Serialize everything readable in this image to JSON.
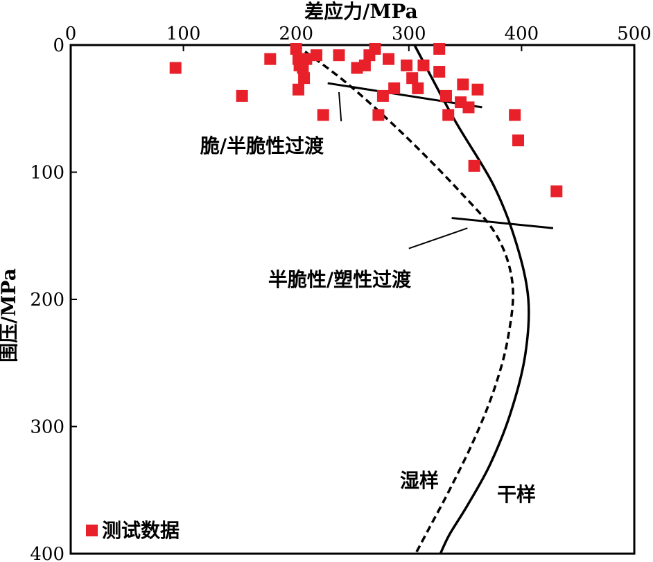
{
  "chart_data": {
    "type": "scatter",
    "xlabel": "差应力/MPa",
    "ylabel": "围压/MPa",
    "xlim": [
      0,
      500
    ],
    "ylim": [
      0,
      400
    ],
    "y_inverted": true,
    "x_axis_position": "top",
    "xticks": [
      0,
      100,
      200,
      300,
      400,
      500
    ],
    "yticks": [
      0,
      100,
      200,
      300,
      400
    ],
    "xtick_labels": [
      "0",
      "100",
      "200",
      "300",
      "400",
      "500"
    ],
    "ytick_labels": [
      "0",
      "100",
      "200",
      "300",
      "400"
    ],
    "grid": false,
    "legend": {
      "position": "bottom-left",
      "entries": [
        "测试数据"
      ]
    },
    "series": [
      {
        "name": "测试数据",
        "kind": "scatter",
        "color": "#e8202a",
        "marker": "square",
        "points": [
          [
            200,
            3
          ],
          [
            270,
            3
          ],
          [
            327,
            3
          ],
          [
            218,
            8
          ],
          [
            238,
            8
          ],
          [
            265,
            8
          ],
          [
            93,
            18
          ],
          [
            177,
            11
          ],
          [
            202,
            11
          ],
          [
            209,
            11
          ],
          [
            203,
            16
          ],
          [
            206,
            18
          ],
          [
            254,
            18
          ],
          [
            261,
            16
          ],
          [
            282,
            11
          ],
          [
            298,
            16
          ],
          [
            313,
            16
          ],
          [
            207,
            26
          ],
          [
            303,
            26
          ],
          [
            327,
            21
          ],
          [
            202,
            35
          ],
          [
            287,
            34
          ],
          [
            308,
            34
          ],
          [
            348,
            31
          ],
          [
            361,
            35
          ],
          [
            152,
            40
          ],
          [
            277,
            40
          ],
          [
            333,
            40
          ],
          [
            346,
            45
          ],
          [
            353,
            49
          ],
          [
            224,
            55
          ],
          [
            273,
            55
          ],
          [
            335,
            55
          ],
          [
            394,
            55
          ],
          [
            397,
            75
          ],
          [
            358,
            95
          ],
          [
            431,
            115
          ]
        ]
      },
      {
        "name": "干样",
        "kind": "line",
        "style": "solid",
        "points": [
          [
            305,
            0
          ],
          [
            340,
            58
          ],
          [
            375,
            110
          ],
          [
            395,
            155
          ],
          [
            406,
            200
          ],
          [
            403,
            245
          ],
          [
            390,
            290
          ],
          [
            372,
            330
          ],
          [
            352,
            362
          ],
          [
            336,
            385
          ],
          [
            328,
            400
          ]
        ]
      },
      {
        "name": "湿样",
        "kind": "line",
        "style": "dashed",
        "points": [
          [
            200,
            0
          ],
          [
            245,
            30
          ],
          [
            295,
            70
          ],
          [
            345,
            115
          ],
          [
            378,
            150
          ],
          [
            392,
            188
          ],
          [
            388,
            230
          ],
          [
            376,
            270
          ],
          [
            358,
            310
          ],
          [
            336,
            350
          ],
          [
            318,
            380
          ],
          [
            306,
            400
          ]
        ]
      }
    ],
    "boundary_lines": [
      {
        "name": "脆/半脆性过渡",
        "points": [
          [
            228,
            30
          ],
          [
            365,
            49
          ]
        ]
      },
      {
        "name": "半脆性/塑性过渡",
        "points": [
          [
            338,
            136
          ],
          [
            428,
            144
          ]
        ]
      }
    ],
    "annotations": [
      {
        "text": "脆/半脆性过渡",
        "leader_from": [
          240,
          60
        ],
        "leader_to": [
          238,
          37
        ]
      },
      {
        "text": "半脆性/塑性过渡",
        "leader_from": [
          300,
          160
        ],
        "leader_to": [
          352,
          144
        ]
      },
      {
        "text": "湿样",
        "anchor": [
          314,
          331
        ]
      },
      {
        "text": "干样",
        "anchor": [
          360,
          350
        ]
      }
    ]
  }
}
